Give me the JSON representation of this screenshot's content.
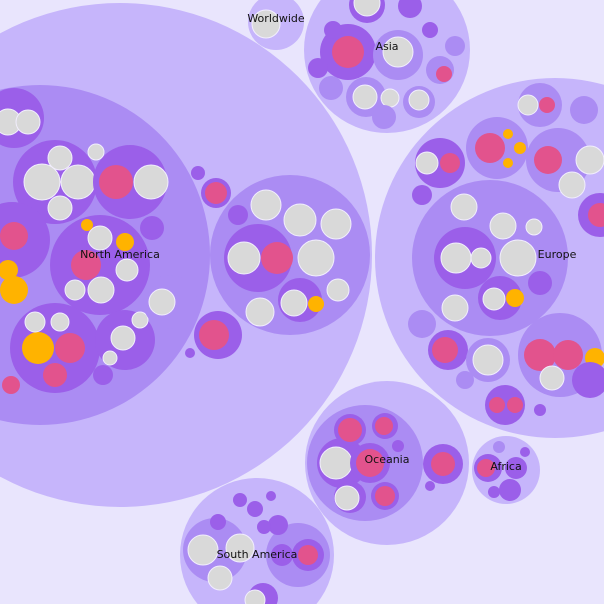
{
  "nodes": [
    {
      "label": "Worldwide"
    },
    {
      "label": "Asia"
    },
    {
      "label": "North America"
    },
    {
      "label": "Europe"
    },
    {
      "label": "Oceania"
    },
    {
      "label": "Africa"
    },
    {
      "label": "South America"
    }
  ]
}
